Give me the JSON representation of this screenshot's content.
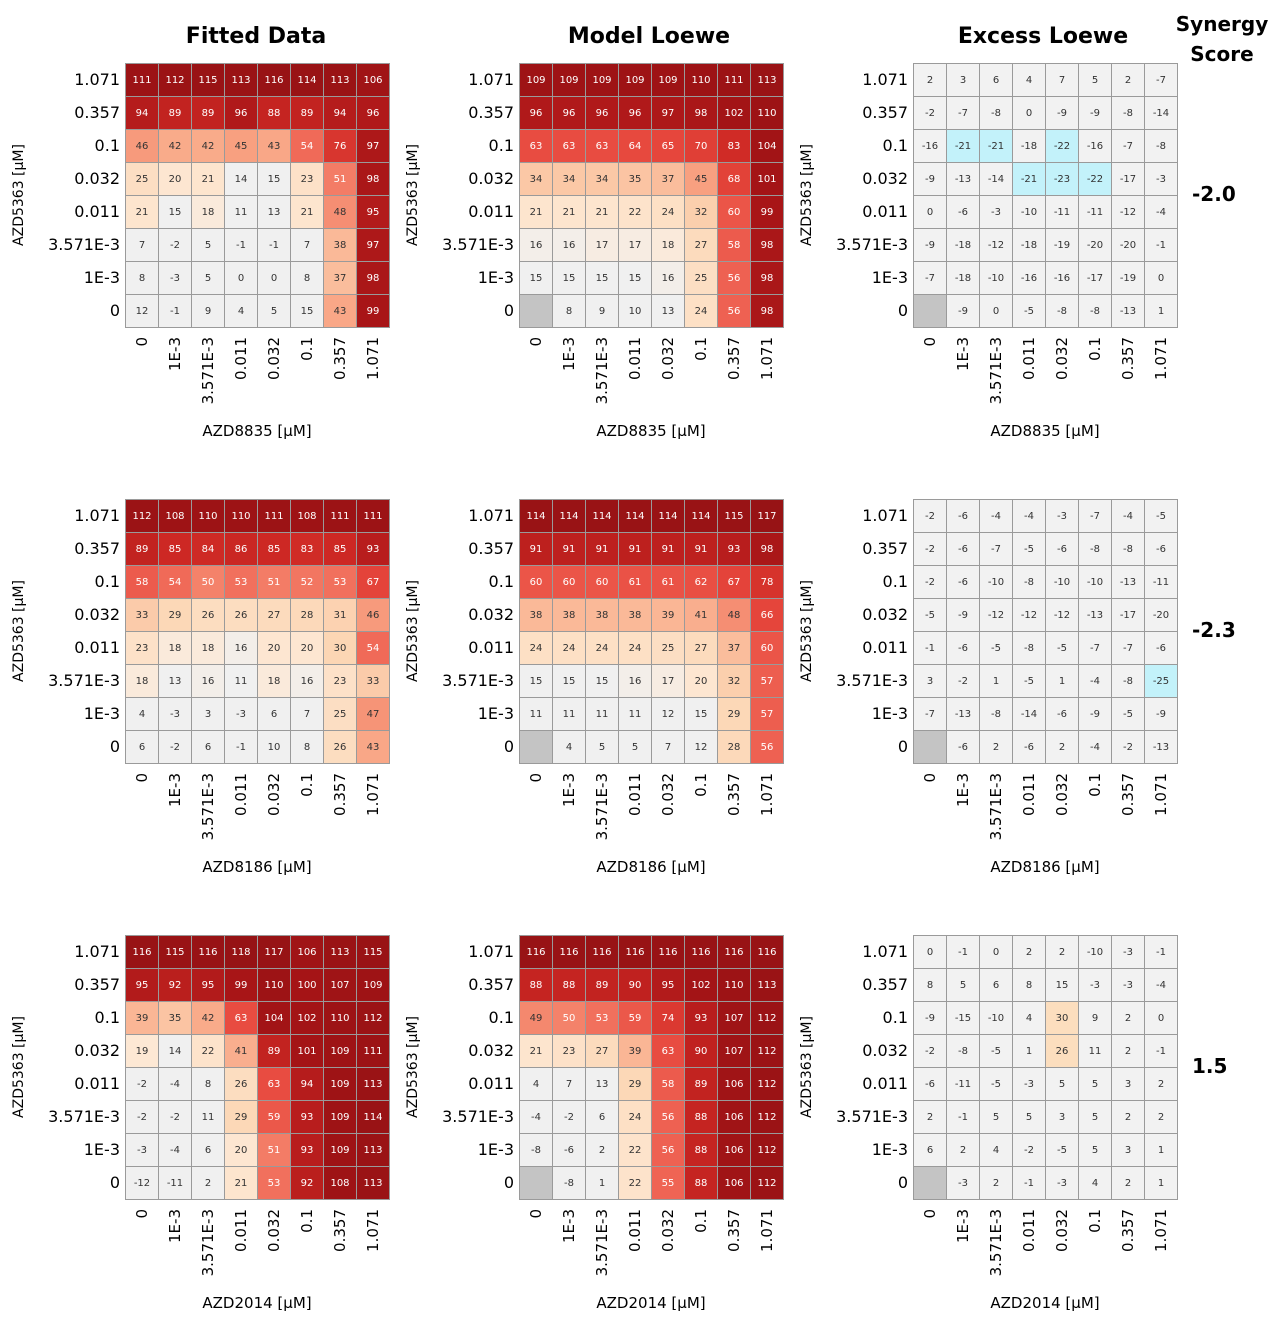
{
  "column_titles": [
    "Fitted Data",
    "Model Loewe",
    "Excess Loewe"
  ],
  "synergy_header": "Synergy\nScore",
  "chart_data": {
    "type": "heatmap",
    "row_labels": [
      "1.071",
      "0.357",
      "0.1",
      "0.032",
      "0.011",
      "3.571E-3",
      "1E-3",
      "0"
    ],
    "col_labels": [
      "0",
      "1E-3",
      "3.571E-3",
      "0.011",
      "0.032",
      "0.1",
      "0.357",
      "1.071"
    ],
    "y_title": "AZD5363 [µM]",
    "rows": [
      {
        "x_title": "AZD8835 [µM]",
        "synergy_score": "-2.0",
        "fitted": [
          [
            111,
            112,
            115,
            113,
            116,
            114,
            113,
            106
          ],
          [
            94,
            89,
            89,
            96,
            88,
            89,
            94,
            96
          ],
          [
            46,
            42,
            42,
            45,
            43,
            54,
            76,
            97
          ],
          [
            25,
            20,
            21,
            14,
            15,
            23,
            51,
            98
          ],
          [
            21,
            15,
            18,
            11,
            13,
            21,
            48,
            95
          ],
          [
            7,
            -2,
            5,
            -1,
            -1,
            7,
            38,
            97
          ],
          [
            8,
            -3,
            5,
            0,
            0,
            8,
            37,
            98
          ],
          [
            12,
            -1,
            9,
            4,
            5,
            15,
            43,
            99
          ]
        ],
        "model": [
          [
            109,
            109,
            109,
            109,
            109,
            110,
            111,
            113
          ],
          [
            96,
            96,
            96,
            96,
            97,
            98,
            102,
            110
          ],
          [
            63,
            63,
            63,
            64,
            65,
            70,
            83,
            104
          ],
          [
            34,
            34,
            34,
            35,
            37,
            45,
            68,
            101
          ],
          [
            21,
            21,
            21,
            22,
            24,
            32,
            60,
            99
          ],
          [
            16,
            16,
            17,
            17,
            18,
            27,
            58,
            98
          ],
          [
            15,
            15,
            15,
            15,
            16,
            25,
            56,
            98
          ],
          [
            null,
            8,
            9,
            10,
            13,
            24,
            56,
            98
          ]
        ],
        "excess": [
          [
            2,
            3,
            6,
            4,
            7,
            5,
            2,
            -7
          ],
          [
            -2,
            -7,
            -8,
            0,
            -9,
            -9,
            -8,
            -14
          ],
          [
            -16,
            -21,
            -21,
            -18,
            -22,
            -16,
            -7,
            -8
          ],
          [
            -9,
            -13,
            -14,
            -21,
            -23,
            -22,
            -17,
            -3
          ],
          [
            0,
            -6,
            -3,
            -10,
            -11,
            -11,
            -12,
            -4
          ],
          [
            -9,
            -18,
            -12,
            -18,
            -19,
            -20,
            -20,
            -1
          ],
          [
            -7,
            -18,
            -10,
            -16,
            -16,
            -17,
            -19,
            0
          ],
          [
            null,
            -9,
            0,
            -5,
            -8,
            -8,
            -13,
            1
          ]
        ]
      },
      {
        "x_title": "AZD8186 [µM]",
        "synergy_score": "-2.3",
        "fitted": [
          [
            112,
            108,
            110,
            110,
            111,
            108,
            111,
            111
          ],
          [
            89,
            85,
            84,
            86,
            85,
            83,
            85,
            93
          ],
          [
            58,
            54,
            50,
            53,
            51,
            52,
            53,
            67
          ],
          [
            33,
            29,
            26,
            26,
            27,
            28,
            31,
            46
          ],
          [
            23,
            18,
            18,
            16,
            20,
            20,
            30,
            54
          ],
          [
            18,
            13,
            16,
            11,
            18,
            16,
            23,
            33
          ],
          [
            4,
            -3,
            3,
            -3,
            6,
            7,
            25,
            47
          ],
          [
            6,
            -2,
            6,
            -1,
            10,
            8,
            26,
            43
          ]
        ],
        "model": [
          [
            114,
            114,
            114,
            114,
            114,
            114,
            115,
            117
          ],
          [
            91,
            91,
            91,
            91,
            91,
            91,
            93,
            98
          ],
          [
            60,
            60,
            60,
            61,
            61,
            62,
            67,
            78
          ],
          [
            38,
            38,
            38,
            38,
            39,
            41,
            48,
            66
          ],
          [
            24,
            24,
            24,
            24,
            25,
            27,
            37,
            60
          ],
          [
            15,
            15,
            15,
            16,
            17,
            20,
            32,
            57
          ],
          [
            11,
            11,
            11,
            11,
            12,
            15,
            29,
            57
          ],
          [
            null,
            4,
            5,
            5,
            7,
            12,
            28,
            56
          ]
        ],
        "excess": [
          [
            -2,
            -6,
            -4,
            -4,
            -3,
            -7,
            -4,
            -5
          ],
          [
            -2,
            -6,
            -7,
            -5,
            -6,
            -8,
            -8,
            -6
          ],
          [
            -2,
            -6,
            -10,
            -8,
            -10,
            -10,
            -13,
            -11
          ],
          [
            -5,
            -9,
            -12,
            -12,
            -12,
            -13,
            -17,
            -20
          ],
          [
            -1,
            -6,
            -5,
            -8,
            -5,
            -7,
            -7,
            -6
          ],
          [
            3,
            -2,
            1,
            -5,
            1,
            -4,
            -8,
            -25
          ],
          [
            -7,
            -13,
            -8,
            -14,
            -6,
            -9,
            -5,
            -9
          ],
          [
            null,
            -6,
            2,
            -6,
            2,
            -4,
            -2,
            -13
          ]
        ]
      },
      {
        "x_title": "AZD2014 [µM]",
        "synergy_score": "1.5",
        "fitted": [
          [
            116,
            115,
            116,
            118,
            117,
            106,
            113,
            115
          ],
          [
            95,
            92,
            95,
            99,
            110,
            100,
            107,
            109
          ],
          [
            39,
            35,
            42,
            63,
            104,
            102,
            110,
            112
          ],
          [
            19,
            14,
            22,
            41,
            89,
            101,
            109,
            111
          ],
          [
            -2,
            -4,
            8,
            26,
            63,
            94,
            109,
            113
          ],
          [
            -2,
            -2,
            11,
            29,
            59,
            93,
            109,
            114
          ],
          [
            -3,
            -4,
            6,
            20,
            51,
            93,
            109,
            113
          ],
          [
            -12,
            -11,
            2,
            21,
            53,
            92,
            108,
            113
          ]
        ],
        "model": [
          [
            116,
            116,
            116,
            116,
            116,
            116,
            116,
            116
          ],
          [
            88,
            88,
            89,
            90,
            95,
            102,
            110,
            113
          ],
          [
            49,
            50,
            53,
            59,
            74,
            93,
            107,
            112
          ],
          [
            21,
            23,
            27,
            39,
            63,
            90,
            107,
            112
          ],
          [
            4,
            7,
            13,
            29,
            58,
            89,
            106,
            112
          ],
          [
            -4,
            -2,
            6,
            24,
            56,
            88,
            106,
            112
          ],
          [
            -8,
            -6,
            2,
            22,
            56,
            88,
            106,
            112
          ],
          [
            null,
            -8,
            1,
            22,
            55,
            88,
            106,
            112
          ]
        ],
        "excess": [
          [
            0,
            -1,
            0,
            2,
            2,
            -10,
            -3,
            -1
          ],
          [
            8,
            5,
            6,
            8,
            15,
            -3,
            -3,
            -4
          ],
          [
            -9,
            -15,
            -10,
            4,
            30,
            9,
            2,
            0
          ],
          [
            -2,
            -8,
            -5,
            1,
            26,
            11,
            2,
            -1
          ],
          [
            -6,
            -11,
            -5,
            -3,
            5,
            5,
            3,
            2
          ],
          [
            2,
            -1,
            5,
            5,
            3,
            5,
            2,
            2
          ],
          [
            6,
            2,
            4,
            -2,
            -5,
            5,
            3,
            1
          ],
          [
            null,
            -3,
            2,
            -1,
            -3,
            4,
            2,
            1
          ]
        ]
      }
    ]
  }
}
